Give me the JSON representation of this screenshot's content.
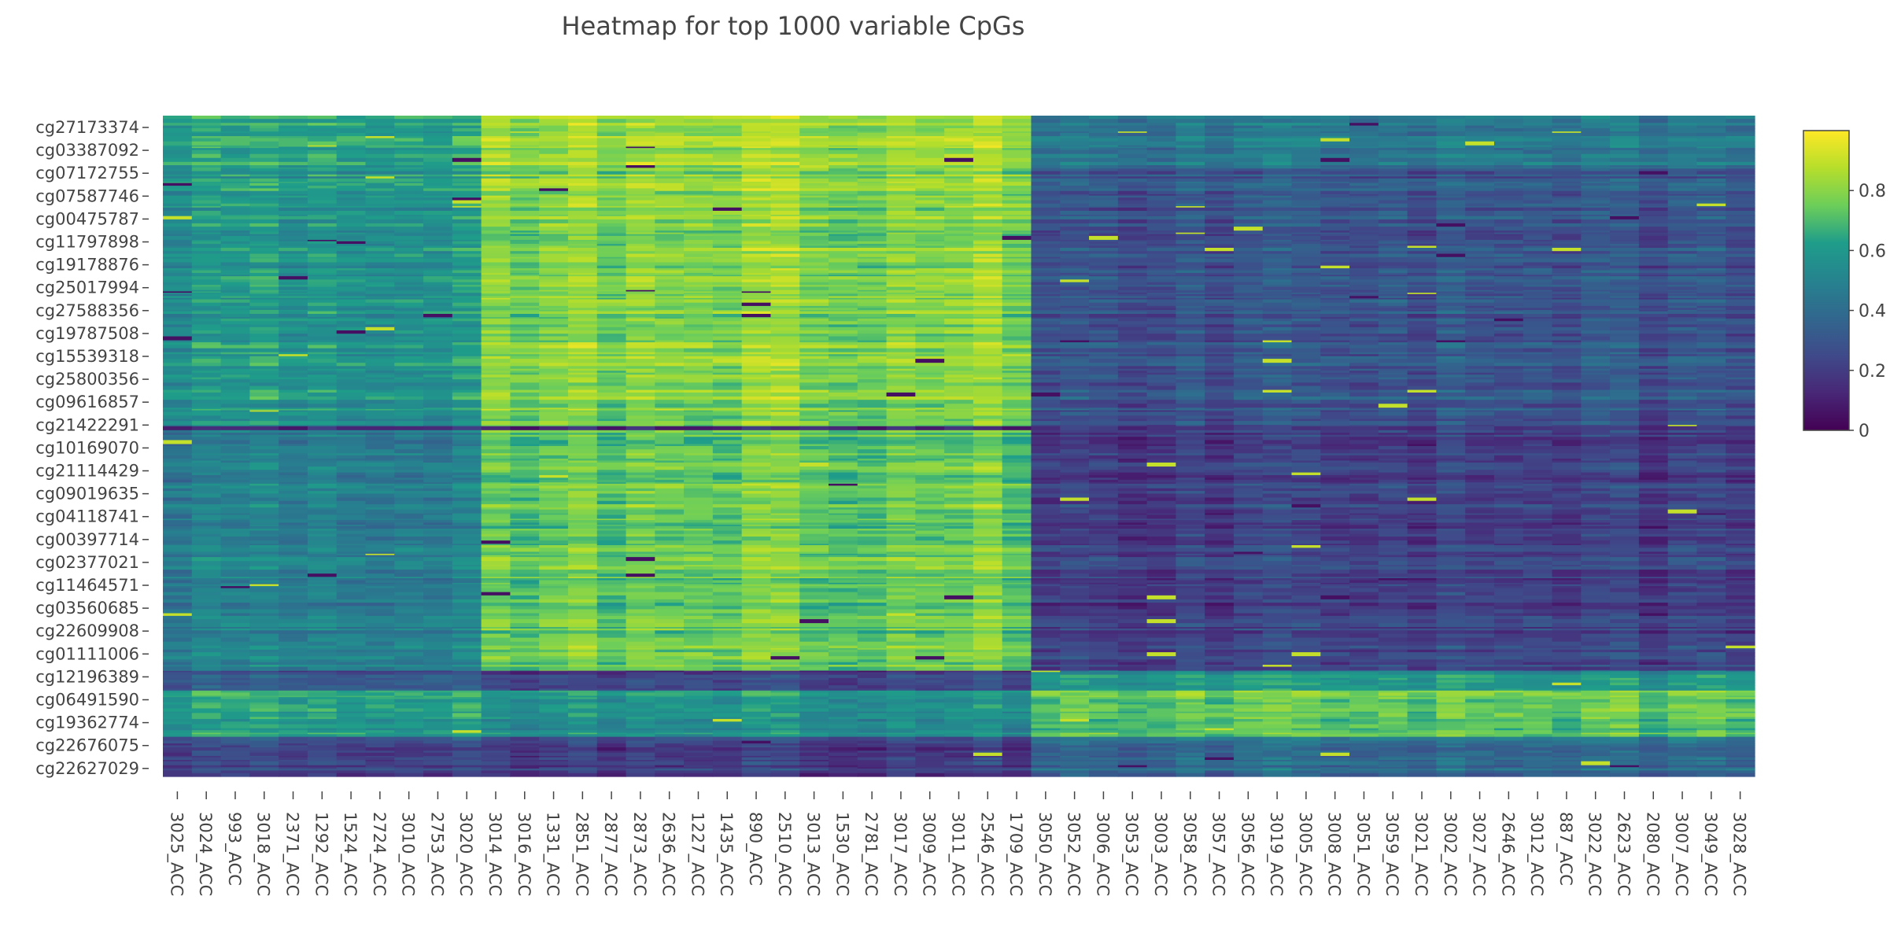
{
  "chart_data": {
    "type": "heatmap",
    "title": "Heatmap for top 1000 variable CpGs",
    "xlabel": "",
    "ylabel": "",
    "colorscale": "viridis",
    "colorscale_stops": [
      "#440154",
      "#482777",
      "#3f4a8a",
      "#31678e",
      "#26838f",
      "#1f9d8a",
      "#6cce5a",
      "#b6de2b",
      "#fee825"
    ],
    "zlim": [
      0,
      1
    ],
    "colorbar_ticks": [
      0,
      0.2,
      0.4,
      0.6,
      0.8
    ],
    "n_rows": 1000,
    "y_tick_labels": [
      "cg27173374",
      "cg03387092",
      "cg07172755",
      "cg07587746",
      "cg00475787",
      "cg11797898",
      "cg19178876",
      "cg25017994",
      "cg27588356",
      "cg19787508",
      "cg15539318",
      "cg25800356",
      "cg09616857",
      "cg21422291",
      "cg10169070",
      "cg21114429",
      "cg09019635",
      "cg04118741",
      "cg00397714",
      "cg02377021",
      "cg11464571",
      "cg03560685",
      "cg22609908",
      "cg01111006",
      "cg12196389",
      "cg06491590",
      "cg19362774",
      "cg22676075",
      "cg22627029"
    ],
    "samples": [
      "3025_ACC",
      "3024_ACC",
      "993_ACC",
      "3018_ACC",
      "2371_ACC",
      "1292_ACC",
      "1524_ACC",
      "2724_ACC",
      "3010_ACC",
      "2753_ACC",
      "3020_ACC",
      "3014_ACC",
      "3016_ACC",
      "1331_ACC",
      "2851_ACC",
      "2877_ACC",
      "2873_ACC",
      "2636_ACC",
      "1227_ACC",
      "1435_ACC",
      "890_ACC",
      "2510_ACC",
      "3013_ACC",
      "1530_ACC",
      "2781_ACC",
      "3017_ACC",
      "3009_ACC",
      "3011_ACC",
      "2546_ACC",
      "1709_ACC",
      "3050_ACC",
      "3052_ACC",
      "3006_ACC",
      "3053_ACC",
      "3003_ACC",
      "3058_ACC",
      "3057_ACC",
      "3056_ACC",
      "3019_ACC",
      "3005_ACC",
      "3008_ACC",
      "3051_ACC",
      "3059_ACC",
      "3021_ACC",
      "3002_ACC",
      "3027_ACC",
      "2646_ACC",
      "3012_ACC",
      "887_ACC",
      "3022_ACC",
      "2623_ACC",
      "2080_ACC",
      "3007_ACC",
      "3049_ACC",
      "3028_ACC"
    ],
    "sample_groups": [
      {
        "first": "3025_ACC",
        "last": "3020_ACC"
      },
      {
        "first": "3014_ACC",
        "last": "1709_ACC"
      },
      {
        "first": "3050_ACC",
        "last": "3028_ACC"
      }
    ],
    "row_blocks": [
      {
        "rows": [
          0,
          80
        ],
        "mean_by_group": [
          0.62,
          0.84,
          0.45
        ]
      },
      {
        "rows": [
          80,
          470
        ],
        "mean_by_group": [
          0.58,
          0.8,
          0.3
        ]
      },
      {
        "rows": [
          470,
          476
        ],
        "mean_by_group": [
          0.15,
          0.15,
          0.2
        ]
      },
      {
        "rows": [
          476,
          840
        ],
        "mean_by_group": [
          0.48,
          0.75,
          0.22
        ]
      },
      {
        "rows": [
          840,
          870
        ],
        "mean_by_group": [
          0.28,
          0.2,
          0.55
        ]
      },
      {
        "rows": [
          870,
          940
        ],
        "mean_by_group": [
          0.6,
          0.55,
          0.72
        ]
      },
      {
        "rows": [
          940,
          1000
        ],
        "mean_by_group": [
          0.25,
          0.22,
          0.4
        ]
      }
    ]
  }
}
